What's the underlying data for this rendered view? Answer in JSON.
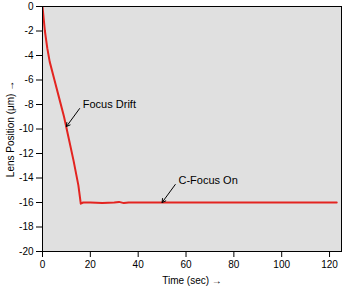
{
  "chart_data": {
    "type": "line",
    "x_label": "Time (sec)",
    "y_label": "Lens Position (μm)",
    "xlim": [
      0,
      125
    ],
    "ylim": [
      -20,
      0
    ],
    "xticks": [
      0,
      20,
      40,
      60,
      80,
      100,
      120
    ],
    "yticks": [
      -20,
      -18,
      -16,
      -14,
      -12,
      -10,
      -8,
      -6,
      -4,
      -2,
      0
    ],
    "color": "#e32420",
    "series": [
      {
        "name": null,
        "color": "#e32420",
        "x": [
          0,
          1,
          2,
          3,
          5,
          7,
          9,
          11,
          13,
          15,
          16,
          17,
          20,
          25,
          30,
          32,
          34,
          36,
          40,
          50,
          60,
          70,
          80,
          90,
          100,
          110,
          120,
          123
        ],
        "values": [
          0,
          -2,
          -3.4,
          -4.5,
          -6,
          -7.5,
          -9,
          -10.8,
          -12.6,
          -14.6,
          -16.1,
          -16,
          -16,
          -16.05,
          -16,
          -15.95,
          -16.05,
          -16,
          -16,
          -16,
          -16,
          -16,
          -16,
          -16,
          -16,
          -16,
          -16,
          -16
        ]
      }
    ],
    "annotations": [
      {
        "text": "Focus Drift",
        "x": 10,
        "y": -9.8
      },
      {
        "text": "C-Focus On",
        "x": 50,
        "y": -16
      }
    ]
  }
}
